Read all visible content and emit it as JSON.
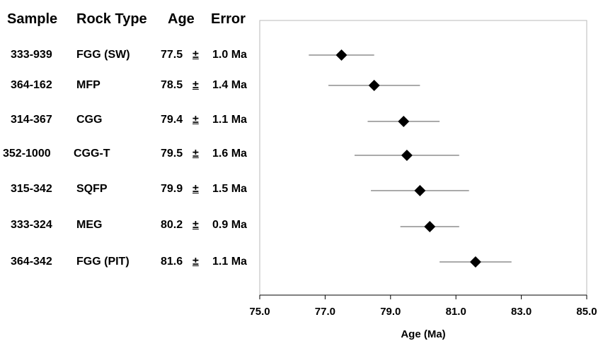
{
  "headers": {
    "sample": "Sample",
    "rock_type": "Rock Type",
    "age": "Age",
    "error": "Error"
  },
  "rows": [
    {
      "sample": "333-939",
      "rock_type": "FGG (SW)",
      "age": "77.5",
      "pm": "±",
      "error": "1.0 Ma"
    },
    {
      "sample": "364-162",
      "rock_type": "MFP",
      "age": "78.5",
      "pm": "±",
      "error": "1.4 Ma"
    },
    {
      "sample": "314-367",
      "rock_type": "CGG",
      "age": "79.4",
      "pm": "±",
      "error": "1.1 Ma"
    },
    {
      "sample": "352-1000",
      "rock_type": "CGG-T",
      "age": "79.5",
      "pm": "±",
      "error": "1.6 Ma"
    },
    {
      "sample": "315-342",
      "rock_type": "SQFP",
      "age": "79.9",
      "pm": "±",
      "error": "1.5 Ma"
    },
    {
      "sample": "333-324",
      "rock_type": "MEG",
      "age": "80.2",
      "pm": "±",
      "error": "0.9 Ma"
    },
    {
      "sample": "364-342",
      "rock_type": "FGG (PIT)",
      "age": "81.6",
      "pm": "±",
      "error": "1.1 Ma"
    }
  ],
  "chart_data": {
    "type": "scatter",
    "marker": "diamond",
    "xlabel": "Age (Ma)",
    "xlim": [
      75.0,
      85.0
    ],
    "x_ticks": [
      75.0,
      77.0,
      79.0,
      81.0,
      83.0,
      85.0
    ],
    "x_tick_labels": [
      "75.0",
      "77.0",
      "79.0",
      "81.0",
      "83.0",
      "85.0"
    ],
    "grid": false,
    "categories": [
      "333-939",
      "364-162",
      "314-367",
      "352-1000",
      "315-342",
      "333-324",
      "364-342"
    ],
    "x": [
      77.5,
      78.5,
      79.4,
      79.5,
      79.9,
      80.2,
      81.6
    ],
    "error": [
      1.0,
      1.4,
      1.1,
      1.6,
      1.5,
      0.9,
      1.1
    ]
  }
}
